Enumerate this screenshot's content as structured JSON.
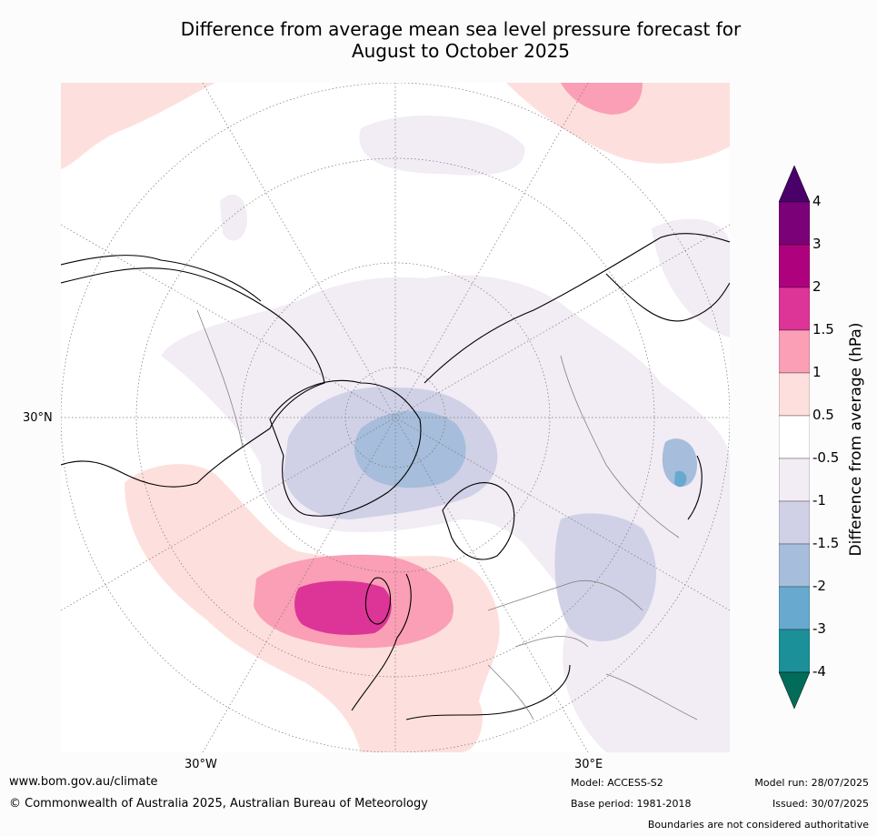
{
  "title_line1": "Difference from average mean sea level pressure forecast for",
  "title_line2": "August to October 2025",
  "map": {
    "lat_label": "30°N",
    "lon_labels": [
      "30°W",
      "30°E"
    ],
    "colors": {
      "pos_0_5_1": "#fde0dd",
      "pos_1_1_5": "#fa9fb5",
      "pos_1_5_2": "#dd3497",
      "neg_0_5_1": "#f2ecf5",
      "neg_1_1_5": "#d0d1e6",
      "neg_1_5_2": "#a6bddb",
      "neg_2_3": "#67a9cf",
      "land_border": "#000000",
      "country_border": "#808080"
    }
  },
  "colorbar": {
    "title": "Difference from average (hPa)",
    "ticks": [
      "4",
      "3",
      "2",
      "1.5",
      "1",
      "0.5",
      "-0.5",
      "-1",
      "-1.5",
      "-2",
      "-3",
      "-4"
    ],
    "colors": [
      "#49006a",
      "#7a0177",
      "#ae017e",
      "#dd3497",
      "#fa9fb5",
      "#fde0dd",
      "#ffffff",
      "#f2ecf5",
      "#d0d1e6",
      "#a6bddb",
      "#67a9cf",
      "#1c9099",
      "#016c59"
    ]
  },
  "footer": {
    "website": "www.bom.gov.au/climate",
    "copyright": "© Commonwealth of Australia 2025, Australian Bureau of Meteorology",
    "model": "Model: ACCESS-S2",
    "base_period": "Base period: 1981-2018",
    "model_run": "Model run: 28/07/2025",
    "issued": "Issued: 30/07/2025",
    "boundaries": "Boundaries are not considered authoritative"
  }
}
